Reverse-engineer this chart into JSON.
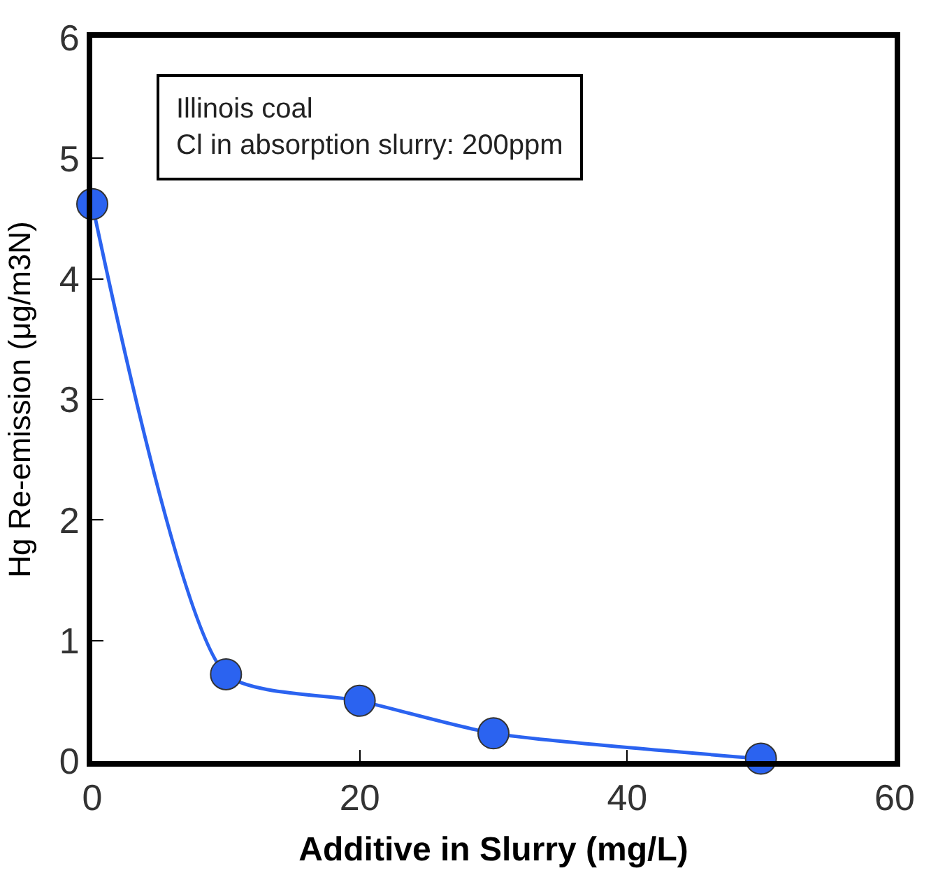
{
  "chart_data": {
    "type": "line",
    "xlabel": "Additive in Slurry (mg/L)",
    "ylabel": "Hg Re-emission (μg/m3N)",
    "annotations": [
      "Illinois coal\nCl in absorption slurry: 200ppm"
    ],
    "x": [
      0,
      10,
      20,
      30,
      50
    ],
    "series": [
      {
        "color": "#2b63f0",
        "values": [
          4.62,
          0.72,
          0.5,
          0.23,
          0.02
        ]
      }
    ],
    "xlim": [
      0,
      60
    ],
    "xticks": [
      0,
      20,
      40,
      60
    ],
    "ylim": [
      0,
      6
    ],
    "yticks": [
      0,
      1,
      2,
      3,
      4,
      5,
      6
    ],
    "marker": "circle",
    "line_style": "solid",
    "legend": false
  }
}
